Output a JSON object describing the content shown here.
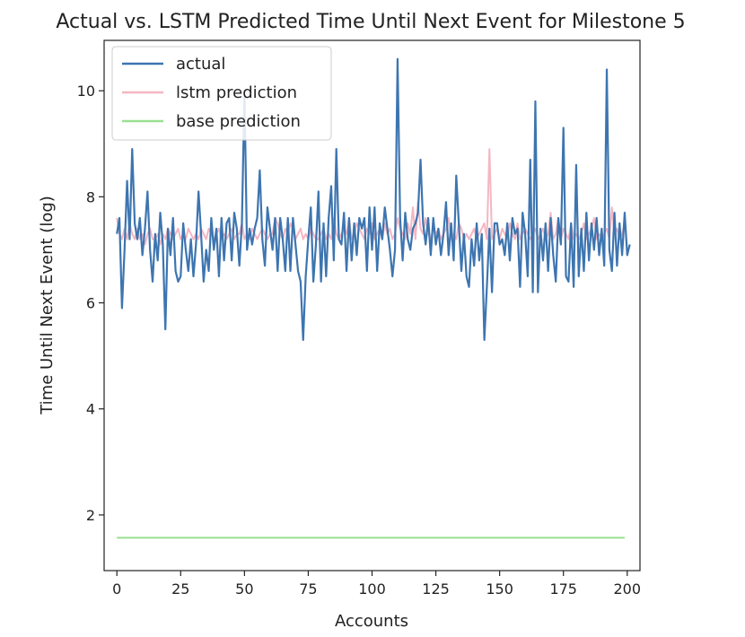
{
  "chart_data": {
    "type": "line",
    "title": "Actual vs. LSTM Predicted Time Until Next Event for Milestone 5",
    "xlabel": "Accounts",
    "ylabel": "Time Until Next Event (log)",
    "xlim": [
      -5,
      205
    ],
    "ylim": [
      0.95,
      10.95
    ],
    "xticks": [
      0,
      25,
      50,
      75,
      100,
      125,
      150,
      175,
      200
    ],
    "yticks": [
      2,
      4,
      6,
      8,
      10
    ],
    "legend_position": "top-left",
    "grid": false,
    "series": [
      {
        "name": "actual",
        "color": "#3d75b0",
        "x_start": 0,
        "x_step": 1,
        "values": [
          7.3,
          7.6,
          5.9,
          7.0,
          8.3,
          7.2,
          8.9,
          7.5,
          7.2,
          7.6,
          6.9,
          7.4,
          8.1,
          7.0,
          6.4,
          7.3,
          6.8,
          7.7,
          7.1,
          5.5,
          7.4,
          6.9,
          7.6,
          6.6,
          6.4,
          6.5,
          7.5,
          7.0,
          6.6,
          7.2,
          6.5,
          7.1,
          8.1,
          7.3,
          6.4,
          7.0,
          6.6,
          7.6,
          7.0,
          7.4,
          6.5,
          7.6,
          6.8,
          7.5,
          7.6,
          6.8,
          7.7,
          7.4,
          6.7,
          7.5,
          10.0,
          7.0,
          7.4,
          7.1,
          7.4,
          7.6,
          8.5,
          7.2,
          6.7,
          7.8,
          7.4,
          7.0,
          7.6,
          6.6,
          7.6,
          7.2,
          6.6,
          7.6,
          6.6,
          7.6,
          7.1,
          6.6,
          6.4,
          5.3,
          6.5,
          7.2,
          7.8,
          6.4,
          7.1,
          8.1,
          6.4,
          7.5,
          6.5,
          7.6,
          8.2,
          6.8,
          8.9,
          7.2,
          7.1,
          7.7,
          6.6,
          7.6,
          6.8,
          7.5,
          6.9,
          7.6,
          7.4,
          7.6,
          6.6,
          7.8,
          7.0,
          7.8,
          6.6,
          7.5,
          7.2,
          7.8,
          7.4,
          7.0,
          6.5,
          7.0,
          10.6,
          7.6,
          6.8,
          7.7,
          7.2,
          7.0,
          7.4,
          7.5,
          7.7,
          8.7,
          7.5,
          7.1,
          7.6,
          6.9,
          7.6,
          7.1,
          7.4,
          6.9,
          7.3,
          7.9,
          6.9,
          7.5,
          6.8,
          8.4,
          7.5,
          6.6,
          7.3,
          6.5,
          6.3,
          7.2,
          6.7,
          7.5,
          6.8,
          7.3,
          5.3,
          6.3,
          7.4,
          6.2,
          7.5,
          7.5,
          7.1,
          7.2,
          6.9,
          7.5,
          6.8,
          7.6,
          7.3,
          7.4,
          6.3,
          7.7,
          7.3,
          6.5,
          8.7,
          6.2,
          9.8,
          6.2,
          7.4,
          6.8,
          7.5,
          6.6,
          7.6,
          6.9,
          6.4,
          7.6,
          7.1,
          9.3,
          6.5,
          6.4,
          7.5,
          6.3,
          8.6,
          6.5,
          7.4,
          6.6,
          7.7,
          6.8,
          7.5,
          7.0,
          7.6,
          6.9,
          7.4,
          6.7,
          10.4,
          7.0,
          6.6,
          7.7,
          6.7,
          7.5,
          6.9,
          7.7,
          6.9,
          7.1
        ]
      },
      {
        "name": "lstm prediction",
        "color": "#f4b6c2",
        "x_start": 0,
        "x_step": 1,
        "values": [
          7.6,
          7.3,
          7.2,
          7.4,
          7.2,
          7.5,
          7.3,
          7.2,
          7.4,
          7.2,
          7.3,
          7.1,
          7.3,
          7.4,
          7.2,
          7.2,
          7.3,
          7.1,
          7.3,
          7.2,
          7.4,
          7.3,
          7.2,
          7.3,
          7.4,
          7.2,
          7.3,
          7.2,
          7.4,
          7.3,
          7.2,
          7.3,
          7.2,
          7.4,
          7.3,
          7.2,
          7.4,
          7.3,
          7.2,
          7.3,
          7.4,
          7.2,
          7.3,
          7.2,
          7.3,
          7.4,
          7.2,
          7.3,
          7.3,
          7.5,
          7.2,
          7.3,
          7.2,
          7.4,
          7.3,
          7.2,
          7.3,
          7.4,
          7.3,
          7.2,
          7.3,
          7.3,
          7.6,
          7.5,
          7.3,
          7.2,
          7.4,
          7.3,
          7.5,
          7.4,
          7.2,
          7.3,
          7.4,
          7.2,
          7.3,
          7.2,
          7.4,
          7.3,
          7.2,
          7.2,
          7.3,
          7.4,
          7.2,
          7.3,
          7.2,
          7.6,
          7.3,
          7.2,
          7.3,
          7.4,
          7.3,
          7.6,
          7.2,
          7.3,
          7.5,
          7.4,
          7.3,
          7.2,
          7.4,
          7.3,
          7.5,
          7.2,
          7.3,
          7.4,
          7.2,
          7.5,
          7.3,
          7.4,
          7.2,
          7.3,
          7.6,
          7.4,
          7.3,
          7.2,
          7.5,
          7.3,
          7.8,
          7.2,
          7.9,
          7.4,
          7.3,
          7.6,
          7.3,
          7.2,
          7.4,
          7.3,
          7.4,
          7.2,
          7.3,
          7.4,
          7.6,
          7.2,
          7.3,
          7.2,
          7.5,
          7.4,
          7.2,
          7.3,
          7.2,
          7.3,
          7.4,
          7.2,
          7.3,
          7.4,
          7.5,
          7.2,
          8.9,
          7.2,
          7.3,
          7.4,
          7.2,
          7.4,
          7.3,
          7.2,
          7.5,
          7.3,
          7.2,
          7.5,
          7.2,
          7.3,
          7.4,
          7.3,
          7.2,
          7.3,
          7.4,
          7.2,
          7.3,
          7.4,
          7.2,
          7.3,
          7.7,
          7.2,
          7.3,
          7.6,
          7.2,
          7.4,
          7.3,
          7.2,
          7.5,
          7.2,
          7.3,
          7.2,
          7.3,
          7.5,
          7.2,
          7.3,
          7.4,
          7.6,
          7.2,
          7.3,
          7.2,
          7.3,
          7.4,
          7.2,
          7.8,
          7.3,
          7.4,
          7.2,
          7.3,
          7.5
        ]
      },
      {
        "name": "base prediction",
        "color": "#99e090",
        "x_start": 0,
        "x_step": 1,
        "values": [
          1.57,
          1.57
        ]
      }
    ],
    "base_prediction_x": [
      0,
      199
    ]
  }
}
